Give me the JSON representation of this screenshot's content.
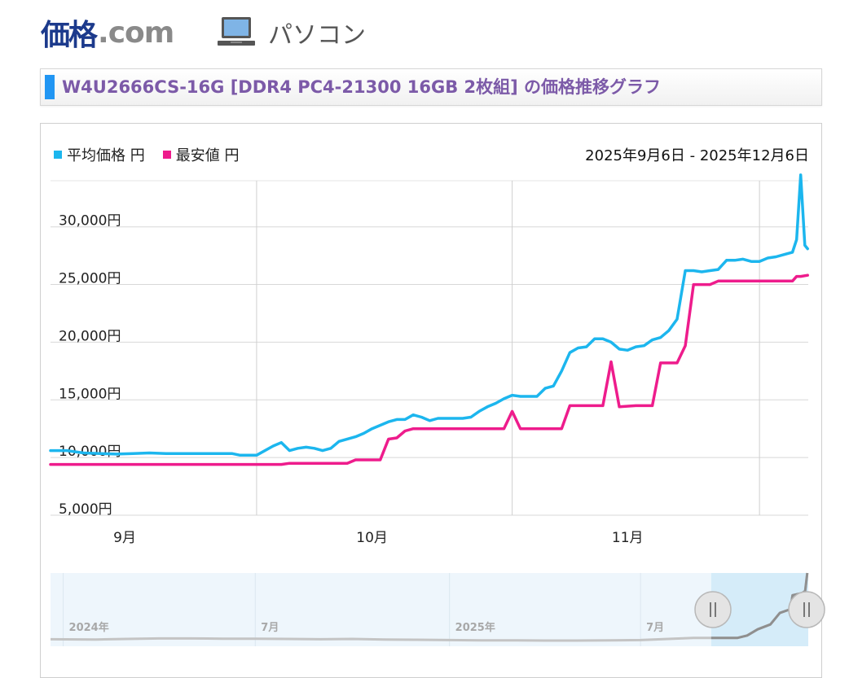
{
  "header": {
    "logo_kakaku": "価格",
    "logo_com": ".com",
    "category_label": "パソコン"
  },
  "title": "W4U2666CS-16G [DDR4 PC4-21300 16GB 2枚組] の価格推移グラフ",
  "legend": {
    "avg_label": "平均価格 円",
    "min_label": "最安値 円"
  },
  "date_range": "2025年9月6日 - 2025年12月6日",
  "colors": {
    "avg": "#1cb6ee",
    "min": "#ee1c8c",
    "title_text": "#7c5aa8",
    "title_accent": "#2196f3",
    "logo_blue": "#1c3a8c"
  },
  "chart_data": {
    "type": "line",
    "title": "",
    "xlabel": "",
    "ylabel": "",
    "ylim": [
      5000,
      34000
    ],
    "yticks": [
      {
        "value": 5000,
        "label": "5,000円"
      },
      {
        "value": 10000,
        "label": "10,000円"
      },
      {
        "value": 15000,
        "label": "15,000円"
      },
      {
        "value": 20000,
        "label": "20,000円"
      },
      {
        "value": 25000,
        "label": "25,000円"
      },
      {
        "value": 30000,
        "label": "30,000円"
      }
    ],
    "x_range": [
      "2025-09-06",
      "2025-12-06"
    ],
    "month_labels": [
      {
        "date": "2025-09-15",
        "label": "9月"
      },
      {
        "date": "2025-10-15",
        "label": "10月"
      },
      {
        "date": "2025-11-15",
        "label": "11月"
      }
    ],
    "gridline_dates": [
      "2025-10-01",
      "2025-11-01",
      "2025-12-01"
    ],
    "series": [
      {
        "name": "平均価格 円",
        "color": "#1cb6ee",
        "points": [
          [
            "2025-09-06",
            10600
          ],
          [
            "2025-09-08",
            10600
          ],
          [
            "2025-09-10",
            10400
          ],
          [
            "2025-09-12",
            10350
          ],
          [
            "2025-09-14",
            10300
          ],
          [
            "2025-09-16",
            10350
          ],
          [
            "2025-09-18",
            10400
          ],
          [
            "2025-09-20",
            10350
          ],
          [
            "2025-09-24",
            10350
          ],
          [
            "2025-09-28",
            10350
          ],
          [
            "2025-09-29",
            10200
          ],
          [
            "2025-10-01",
            10200
          ],
          [
            "2025-10-03",
            11000
          ],
          [
            "2025-10-04",
            11300
          ],
          [
            "2025-10-05",
            10600
          ],
          [
            "2025-10-06",
            10800
          ],
          [
            "2025-10-07",
            10900
          ],
          [
            "2025-10-08",
            10800
          ],
          [
            "2025-10-09",
            10600
          ],
          [
            "2025-10-10",
            10800
          ],
          [
            "2025-10-11",
            11400
          ],
          [
            "2025-10-13",
            11800
          ],
          [
            "2025-10-14",
            12100
          ],
          [
            "2025-10-15",
            12500
          ],
          [
            "2025-10-17",
            13100
          ],
          [
            "2025-10-18",
            13300
          ],
          [
            "2025-10-19",
            13300
          ],
          [
            "2025-10-20",
            13700
          ],
          [
            "2025-10-21",
            13500
          ],
          [
            "2025-10-22",
            13200
          ],
          [
            "2025-10-23",
            13400
          ],
          [
            "2025-10-26",
            13400
          ],
          [
            "2025-10-27",
            13500
          ],
          [
            "2025-10-28",
            14000
          ],
          [
            "2025-10-29",
            14400
          ],
          [
            "2025-10-30",
            14700
          ],
          [
            "2025-10-31",
            15100
          ],
          [
            "2025-11-01",
            15400
          ],
          [
            "2025-11-02",
            15300
          ],
          [
            "2025-11-03",
            15300
          ],
          [
            "2025-11-04",
            15300
          ],
          [
            "2025-11-05",
            16000
          ],
          [
            "2025-11-06",
            16200
          ],
          [
            "2025-11-07",
            17500
          ],
          [
            "2025-11-08",
            19100
          ],
          [
            "2025-11-09",
            19500
          ],
          [
            "2025-11-10",
            19600
          ],
          [
            "2025-11-11",
            20300
          ],
          [
            "2025-11-12",
            20300
          ],
          [
            "2025-11-13",
            20000
          ],
          [
            "2025-11-14",
            19400
          ],
          [
            "2025-11-15",
            19300
          ],
          [
            "2025-11-16",
            19600
          ],
          [
            "2025-11-17",
            19700
          ],
          [
            "2025-11-18",
            20200
          ],
          [
            "2025-11-19",
            20400
          ],
          [
            "2025-11-20",
            21000
          ],
          [
            "2025-11-21",
            22000
          ],
          [
            "2025-11-22",
            26200
          ],
          [
            "2025-11-23",
            26200
          ],
          [
            "2025-11-24",
            26100
          ],
          [
            "2025-11-25",
            26200
          ],
          [
            "2025-11-26",
            26300
          ],
          [
            "2025-11-27",
            27100
          ],
          [
            "2025-11-28",
            27100
          ],
          [
            "2025-11-29",
            27200
          ],
          [
            "2025-11-30",
            27000
          ],
          [
            "2025-12-01",
            27000
          ],
          [
            "2025-12-02",
            27300
          ],
          [
            "2025-12-03",
            27400
          ],
          [
            "2025-12-04",
            27600
          ],
          [
            "2025-12-05",
            27800
          ],
          [
            "2025-12-05T12",
            28900
          ],
          [
            "2025-12-06",
            34500
          ],
          [
            "2025-12-06T12",
            28400
          ],
          [
            "2025-12-06T20",
            28100
          ]
        ]
      },
      {
        "name": "最安値 円",
        "color": "#ee1c8c",
        "points": [
          [
            "2025-09-06",
            9400
          ],
          [
            "2025-09-10",
            9400
          ],
          [
            "2025-09-20",
            9400
          ],
          [
            "2025-10-01",
            9400
          ],
          [
            "2025-10-04",
            9400
          ],
          [
            "2025-10-05",
            9500
          ],
          [
            "2025-10-09",
            9500
          ],
          [
            "2025-10-12",
            9500
          ],
          [
            "2025-10-13",
            9800
          ],
          [
            "2025-10-15",
            9800
          ],
          [
            "2025-10-16",
            9800
          ],
          [
            "2025-10-17",
            11600
          ],
          [
            "2025-10-18",
            11700
          ],
          [
            "2025-10-19",
            12300
          ],
          [
            "2025-10-20",
            12500
          ],
          [
            "2025-10-26",
            12500
          ],
          [
            "2025-10-30",
            12500
          ],
          [
            "2025-10-31",
            12500
          ],
          [
            "2025-11-01",
            14000
          ],
          [
            "2025-11-02",
            12500
          ],
          [
            "2025-11-03",
            12500
          ],
          [
            "2025-11-06",
            12500
          ],
          [
            "2025-11-07",
            12500
          ],
          [
            "2025-11-08",
            14500
          ],
          [
            "2025-11-10",
            14500
          ],
          [
            "2025-11-12",
            14500
          ],
          [
            "2025-11-13",
            18300
          ],
          [
            "2025-11-14",
            14400
          ],
          [
            "2025-11-16",
            14500
          ],
          [
            "2025-11-18",
            14500
          ],
          [
            "2025-11-19",
            18200
          ],
          [
            "2025-11-21",
            18200
          ],
          [
            "2025-11-22",
            19700
          ],
          [
            "2025-11-23",
            25000
          ],
          [
            "2025-11-24",
            25000
          ],
          [
            "2025-11-25",
            25000
          ],
          [
            "2025-11-26",
            25300
          ],
          [
            "2025-11-28",
            25300
          ],
          [
            "2025-12-02",
            25300
          ],
          [
            "2025-12-05",
            25300
          ],
          [
            "2025-12-05T12",
            25700
          ],
          [
            "2025-12-06",
            25700
          ],
          [
            "2025-12-06T20",
            25800
          ]
        ]
      }
    ],
    "navigator": {
      "x_range": [
        "2023-12-20",
        "2025-12-06"
      ],
      "labels": [
        {
          "date": "2024-01-01",
          "label": "2024年"
        },
        {
          "date": "2024-07-01",
          "label": "7月"
        },
        {
          "date": "2025-01-01",
          "label": "2025年"
        },
        {
          "date": "2025-07-01",
          "label": "7月"
        }
      ],
      "selected_range": [
        "2025-09-06",
        "2025-12-06"
      ],
      "trend": [
        [
          "2023-12-20",
          9800
        ],
        [
          "2024-02-01",
          9700
        ],
        [
          "2024-03-01",
          9900
        ],
        [
          "2024-04-01",
          10100
        ],
        [
          "2024-05-01",
          10100
        ],
        [
          "2024-06-01",
          10000
        ],
        [
          "2024-07-01",
          10000
        ],
        [
          "2024-08-01",
          9900
        ],
        [
          "2024-09-01",
          9800
        ],
        [
          "2024-10-01",
          9900
        ],
        [
          "2024-11-01",
          9700
        ],
        [
          "2024-12-01",
          9600
        ],
        [
          "2025-01-01",
          9500
        ],
        [
          "2025-02-01",
          9400
        ],
        [
          "2025-03-01",
          9400
        ],
        [
          "2025-04-01",
          9300
        ],
        [
          "2025-05-01",
          9300
        ],
        [
          "2025-06-01",
          9400
        ],
        [
          "2025-07-01",
          9500
        ],
        [
          "2025-08-01",
          10000
        ],
        [
          "2025-08-20",
          10300
        ],
        [
          "2025-09-06",
          10300
        ],
        [
          "2025-10-01",
          10300
        ],
        [
          "2025-10-10",
          11200
        ],
        [
          "2025-10-20",
          13500
        ],
        [
          "2025-11-01",
          15300
        ],
        [
          "2025-11-10",
          19600
        ],
        [
          "2025-11-20",
          21000
        ],
        [
          "2025-11-22",
          26200
        ],
        [
          "2025-12-01",
          27000
        ],
        [
          "2025-12-04",
          27800
        ],
        [
          "2025-12-06",
          34500
        ]
      ]
    }
  }
}
